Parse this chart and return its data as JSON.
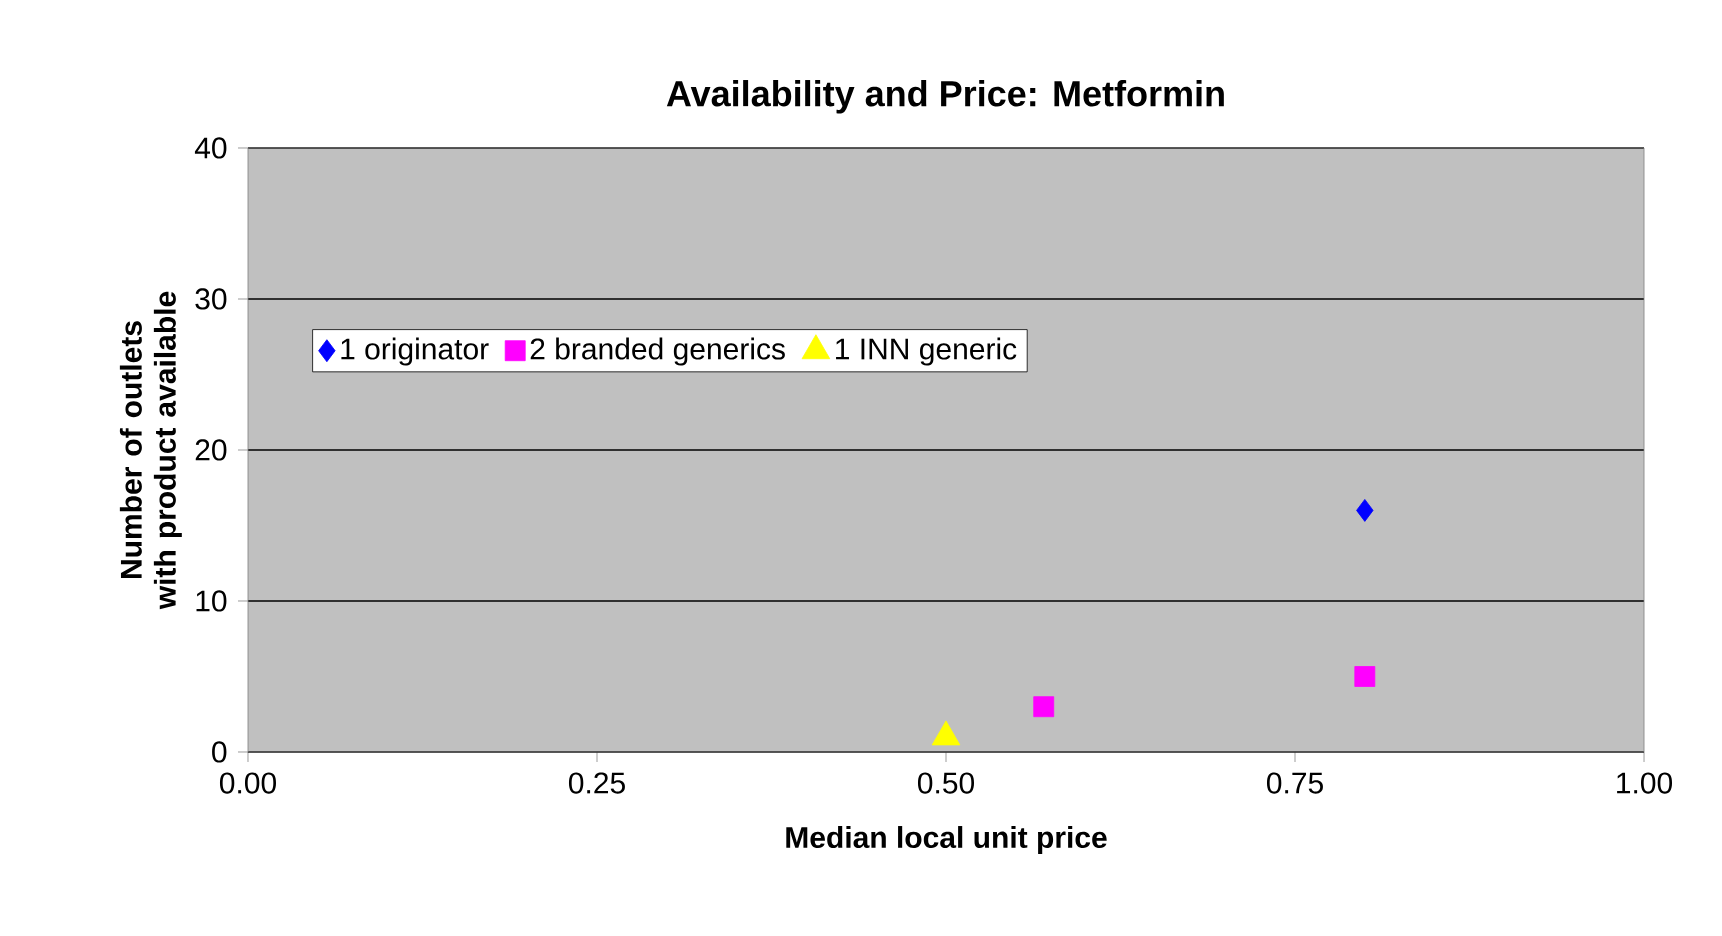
{
  "chart_data": {
    "type": "scatter",
    "title": "Availability and Price:  Metformin",
    "xlabel": "Median local unit price",
    "ylabel": "Number of outlets with product available",
    "series": [
      {
        "name": "1 originator",
        "color": "#0000ff",
        "marker": "diamond",
        "x": [
          0.8
        ],
        "values": [
          16
        ]
      },
      {
        "name": "2 branded generics",
        "color": "#ff00ff",
        "marker": "square",
        "x": [
          0.57,
          0.8
        ],
        "values": [
          3,
          5
        ]
      },
      {
        "name": "1 INN generic",
        "color": "#ffff00",
        "marker": "triangle",
        "x": [
          0.5
        ],
        "values": [
          1
        ]
      }
    ],
    "xlim": [
      0,
      1
    ],
    "ylim": [
      0,
      40
    ],
    "xticks": [
      {
        "value": 0,
        "label": "0.00"
      },
      {
        "value": 0.25,
        "label": "0.25"
      },
      {
        "value": 0.5,
        "label": "0.50"
      },
      {
        "value": 0.75,
        "label": "0.75"
      },
      {
        "value": 1,
        "label": "1.00"
      }
    ],
    "yticks": [
      0,
      10,
      20,
      30,
      40
    ],
    "grid": "y",
    "legend": "left"
  }
}
